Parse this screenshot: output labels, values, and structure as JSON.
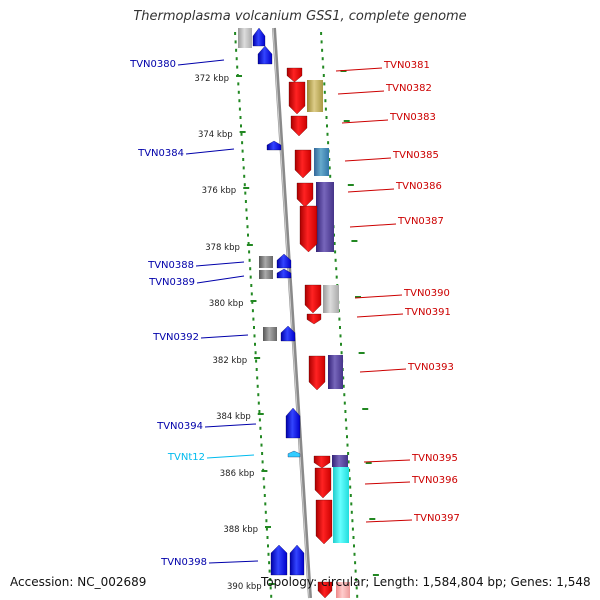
{
  "title": "Thermoplasma volcanium GSS1, complete genome",
  "footer": {
    "accession": "Accession: NC_002689",
    "stats": "Topology: circular; Length: 1,584,804 bp; Genes: 1,548"
  },
  "colors": {
    "gene_forward": "#0000ee",
    "gene_reverse": "#ee0000",
    "trna": "#33ccff",
    "left_label": "#0000aa",
    "right_label": "#cc0000",
    "trna_label": "#00bbee",
    "kbp_ticks": "#228822"
  },
  "kbp_labels": [
    "372 kbp",
    "374 kbp",
    "376 kbp",
    "378 kbp",
    "380 kbp",
    "382 kbp",
    "384 kbp",
    "386 kbp",
    "388 kbp",
    "390 kbp"
  ],
  "genes_left": [
    {
      "id": "TVN0380",
      "type": "gene"
    },
    {
      "id": "TVN0384",
      "type": "gene"
    },
    {
      "id": "TVN0388",
      "type": "gene"
    },
    {
      "id": "TVN0389",
      "type": "gene"
    },
    {
      "id": "TVN0392",
      "type": "gene"
    },
    {
      "id": "TVN0394",
      "type": "gene"
    },
    {
      "id": "TVNt12",
      "type": "trna"
    },
    {
      "id": "TVN0398",
      "type": "gene"
    }
  ],
  "genes_right": [
    {
      "id": "TVN0381"
    },
    {
      "id": "TVN0382"
    },
    {
      "id": "TVN0383"
    },
    {
      "id": "TVN0385"
    },
    {
      "id": "TVN0386"
    },
    {
      "id": "TVN0387"
    },
    {
      "id": "TVN0390"
    },
    {
      "id": "TVN0391"
    },
    {
      "id": "TVN0393"
    },
    {
      "id": "TVN0395"
    },
    {
      "id": "TVN0396"
    },
    {
      "id": "TVN0397"
    }
  ]
}
